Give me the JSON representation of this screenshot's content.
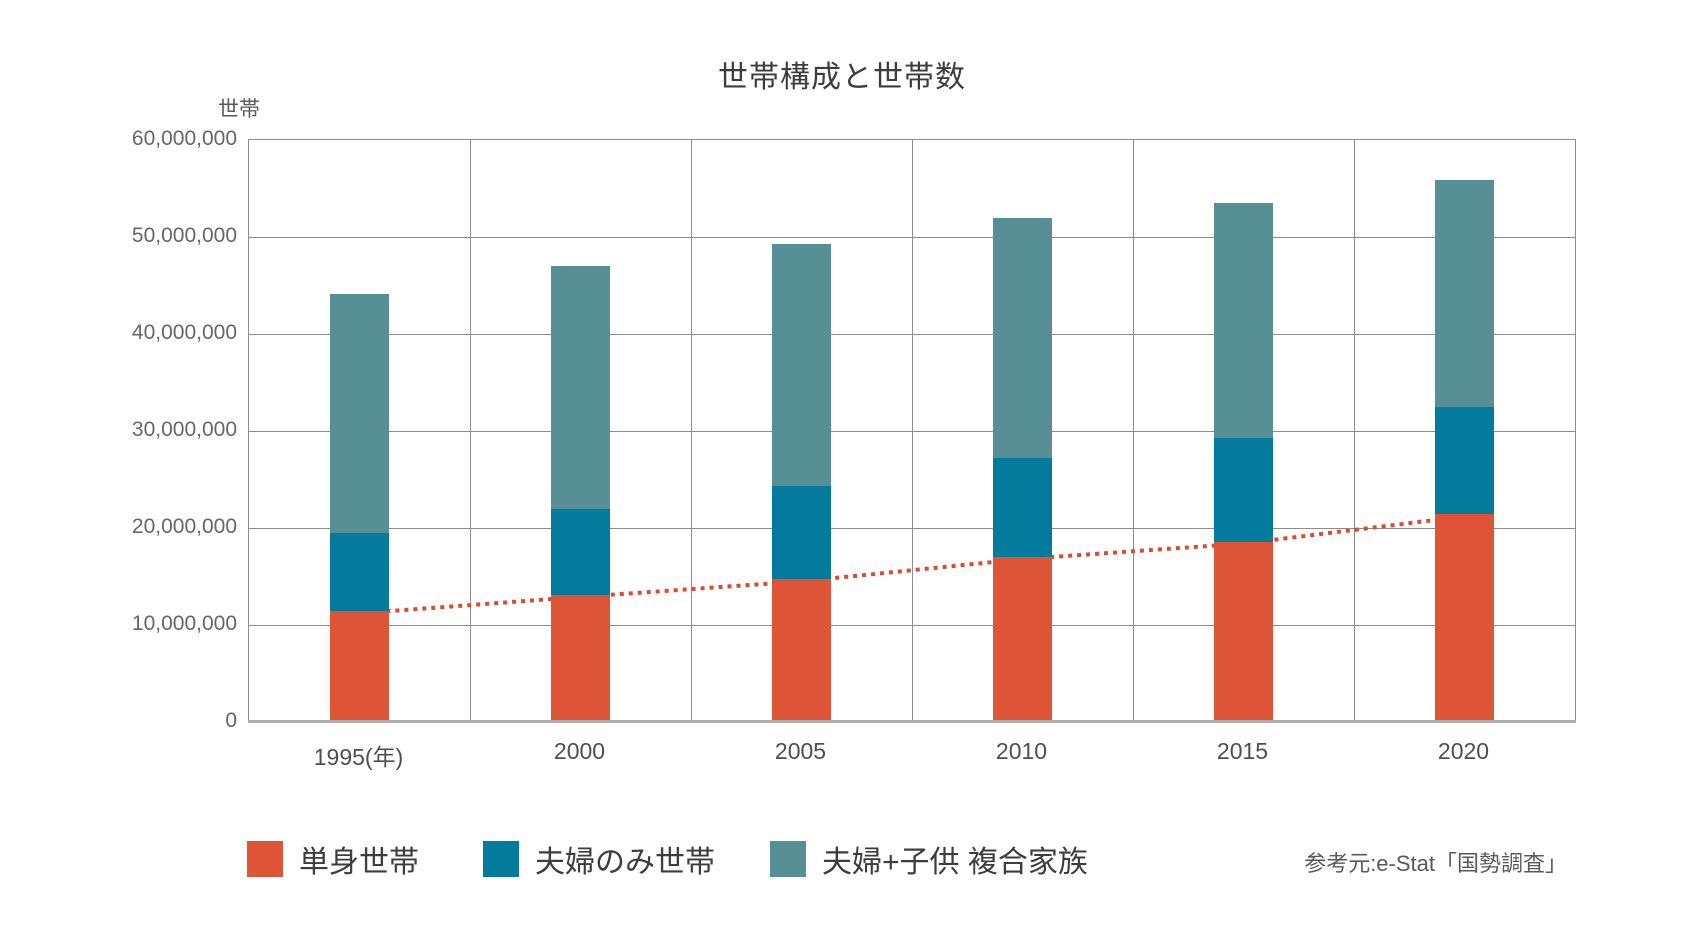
{
  "title": "世帯構成と世帯数",
  "y_axis": {
    "unit_label": "世帯",
    "tick_labels": [
      "0",
      "10,000,000",
      "20,000,000",
      "30,000,000",
      "40,000,000",
      "50,000,000",
      "60,000,000"
    ]
  },
  "source_note": "参考元:e-Stat「国勢調査」",
  "colors": {
    "series": [
      "#DD5437",
      "#047A9C",
      "#579094"
    ],
    "trend": "#DB4A32",
    "grid": "#8C8C8C",
    "baseline": "#B0B0B0",
    "title_text": "#3D3D3D",
    "tick_text": "#666666"
  },
  "chart_data": {
    "type": "bar",
    "stacked": true,
    "title": "世帯構成と世帯数",
    "ylabel": "世帯",
    "xlabel": "",
    "ylim": [
      0,
      60000000
    ],
    "ytick_step": 10000000,
    "grid": true,
    "legend_position": "bottom",
    "categories": [
      "1995(年)",
      "2000",
      "2005",
      "2010",
      "2015",
      "2020"
    ],
    "series": [
      {
        "name": "単身世帯",
        "values": [
          11200000,
          12900000,
          14500000,
          16800000,
          18400000,
          21200000
        ]
      },
      {
        "name": "夫婦のみ世帯",
        "values": [
          8100000,
          8900000,
          9600000,
          10200000,
          10700000,
          11100000
        ]
      },
      {
        "name": "夫婦+子供 複合家族",
        "values": [
          24600000,
          25000000,
          25000000,
          24800000,
          24200000,
          23400000
        ]
      }
    ],
    "totals": [
      43900000,
      46800000,
      49100000,
      51800000,
      53300000,
      55700000
    ],
    "trend_line": {
      "series": "単身世帯",
      "style": "dotted",
      "color": "#DB4A32"
    }
  }
}
